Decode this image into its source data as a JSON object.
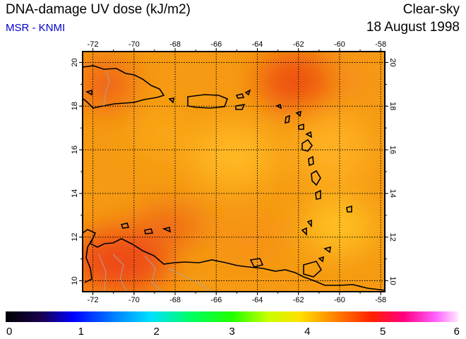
{
  "header": {
    "title": "DNA-damage UV dose (kJ/m2)",
    "source": "MSR - KNMI",
    "condition": "Clear-sky",
    "date": "18 August 1998"
  },
  "map": {
    "lon_range": [
      -72.5,
      -57.8
    ],
    "lat_range": [
      9.5,
      20.5
    ],
    "lon_ticks": [
      "-72",
      "-70",
      "-68",
      "-66",
      "-64",
      "-62",
      "-60",
      "-58"
    ],
    "lat_ticks": [
      "10",
      "12",
      "14",
      "16",
      "18",
      "20"
    ],
    "grid": true,
    "base_color": "#f59a12"
  },
  "colorbar": {
    "min": 0,
    "max": 6,
    "labels": [
      "0",
      "1",
      "2",
      "3",
      "4",
      "5",
      "6"
    ]
  }
}
